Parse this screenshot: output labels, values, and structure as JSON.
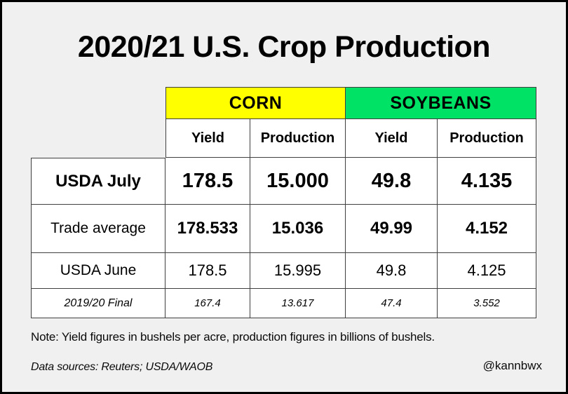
{
  "title": "2020/21 U.S. Crop Production",
  "colors": {
    "corn_header": "#FFFF00",
    "soybeans_header": "#00E266",
    "background": "#F0F0F1",
    "cell_border": "#3F3F3F",
    "frame_border": "#000000"
  },
  "table": {
    "groups": [
      {
        "label": "CORN"
      },
      {
        "label": "SOYBEANS"
      }
    ],
    "subheaders": [
      "Yield",
      "Production",
      "Yield",
      "Production"
    ],
    "rows": [
      {
        "label": "USDA July",
        "values": [
          "178.5",
          "15.000",
          "49.8",
          "4.135"
        ]
      },
      {
        "label": "Trade average",
        "values": [
          "178.533",
          "15.036",
          "49.99",
          "4.152"
        ]
      },
      {
        "label": "USDA June",
        "values": [
          "178.5",
          "15.995",
          "49.8",
          "4.125"
        ]
      },
      {
        "label": "2019/20 Final",
        "values": [
          "167.4",
          "13.617",
          "47.4",
          "3.552"
        ]
      }
    ]
  },
  "note": "Note: Yield figures in bushels per acre, production figures in billions of bushels.",
  "data_sources": "Data sources: Reuters; USDA/WAOB",
  "credit": "@kannbwx",
  "chart_data": {
    "type": "table",
    "title": "2020/21 U.S. Crop Production",
    "column_groups": [
      "CORN",
      "SOYBEANS"
    ],
    "columns": [
      "Corn Yield",
      "Corn Production",
      "Soybeans Yield",
      "Soybeans Production"
    ],
    "row_labels": [
      "USDA July",
      "Trade average",
      "USDA June",
      "2019/20 Final"
    ],
    "rows": [
      [
        "178.5",
        "15.000",
        "49.8",
        "4.135"
      ],
      [
        "178.533",
        "15.036",
        "49.99",
        "4.152"
      ],
      [
        "178.5",
        "15.995",
        "49.8",
        "4.125"
      ],
      [
        "167.4",
        "13.617",
        "47.4",
        "3.552"
      ]
    ],
    "units": {
      "yield": "bushels per acre",
      "production": "billions of bushels"
    },
    "sources": "Reuters; USDA/WAOB"
  }
}
